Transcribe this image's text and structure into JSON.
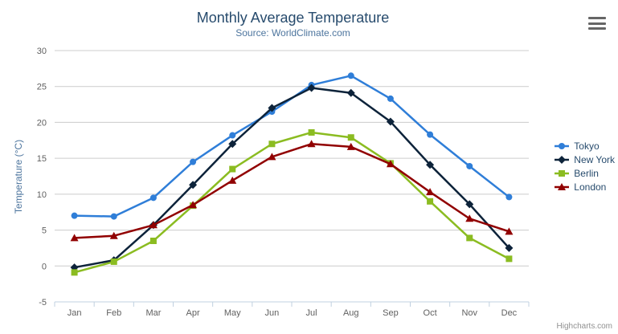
{
  "chart_data": {
    "type": "line",
    "title": "Monthly Average Temperature",
    "subtitle": "Source: WorldClimate.com",
    "xlabel": "",
    "ylabel": "Temperature (°C)",
    "categories": [
      "Jan",
      "Feb",
      "Mar",
      "Apr",
      "May",
      "Jun",
      "Jul",
      "Aug",
      "Sep",
      "Oct",
      "Nov",
      "Dec"
    ],
    "ylim": [
      -5,
      30
    ],
    "yticks": [
      -5,
      0,
      5,
      10,
      15,
      20,
      25,
      30
    ],
    "grid": true,
    "legend_position": "right",
    "series": [
      {
        "name": "Tokyo",
        "color": "#2f7ed8",
        "marker": "circle",
        "values": [
          7.0,
          6.9,
          9.5,
          14.5,
          18.2,
          21.5,
          25.2,
          26.5,
          23.3,
          18.3,
          13.9,
          9.6
        ]
      },
      {
        "name": "New York",
        "color": "#0d233a",
        "marker": "diamond",
        "values": [
          -0.2,
          0.8,
          5.7,
          11.3,
          17.0,
          22.0,
          24.8,
          24.1,
          20.1,
          14.1,
          8.6,
          2.5
        ]
      },
      {
        "name": "Berlin",
        "color": "#8bbc21",
        "marker": "square",
        "values": [
          -0.9,
          0.6,
          3.5,
          8.4,
          13.5,
          17.0,
          18.6,
          17.9,
          14.3,
          9.0,
          3.9,
          1.0
        ]
      },
      {
        "name": "London",
        "color": "#910000",
        "marker": "triangle",
        "values": [
          3.9,
          4.2,
          5.7,
          8.5,
          11.9,
          15.2,
          17.0,
          16.6,
          14.2,
          10.3,
          6.6,
          4.8
        ]
      }
    ],
    "colors": {
      "title": "#274b6d",
      "subtitle": "#4d759e",
      "axis_title": "#4d759e",
      "tick_labels": "#606060",
      "grid_line": "#cccccc",
      "axis_line": "#c0d0e0",
      "legend_text": "#274b6d",
      "credits_text": "#909090"
    }
  },
  "credits": {
    "label": "Highcharts.com"
  }
}
